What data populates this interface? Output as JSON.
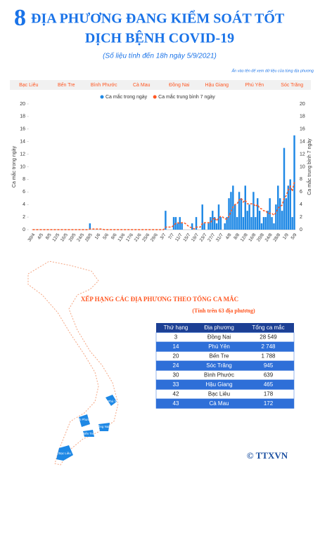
{
  "header": {
    "number": "8",
    "line1": "ĐỊA PHƯƠNG ĐANG KIỂM SOÁT TỐT",
    "line2": "DỊCH BỆNH COVID-19",
    "subtitle": "(Số liệu tính đến 18h ngày 5/9/2021)",
    "hint": "Ấn vào tên để xem dữ liệu của từng địa phương"
  },
  "tabs": [
    "Bạc Liêu",
    "Bến Tre",
    "Bình Phước",
    "Cà Mau",
    "Đồng Nai",
    "Hậu Giang",
    "Phú Yên",
    "Sóc Trăng"
  ],
  "chart_data": {
    "type": "bar",
    "y_label": "Ca mắc trong ngày",
    "y2_label": "Ca mắc trung bình 7 ngày",
    "categories": [
      "30/4",
      null,
      null,
      null,
      "4/5",
      null,
      null,
      null,
      "8/5",
      null,
      null,
      null,
      "12/5",
      null,
      null,
      null,
      "16/5",
      null,
      null,
      null,
      "20/5",
      null,
      null,
      null,
      "24/5",
      null,
      null,
      null,
      "28/5",
      null,
      null,
      null,
      "1/6",
      null,
      null,
      null,
      "5/6",
      null,
      null,
      null,
      "9/6",
      null,
      null,
      null,
      "13/6",
      null,
      null,
      null,
      "17/6",
      null,
      null,
      null,
      "21/6",
      null,
      null,
      null,
      "25/6",
      null,
      null,
      null,
      "29/6",
      null,
      null,
      null,
      "3/7",
      null,
      null,
      null,
      "7/7",
      null,
      null,
      null,
      "11/7",
      null,
      null,
      null,
      "15/7",
      null,
      null,
      null,
      "19/7",
      null,
      null,
      null,
      "23/7",
      null,
      null,
      null,
      "27/7",
      null,
      null,
      null,
      "31/7",
      null,
      null,
      null,
      "4/8",
      null,
      null,
      null,
      "8/8",
      null,
      null,
      null,
      "12/8",
      null,
      null,
      null,
      "16/8",
      null,
      null,
      null,
      "20/8",
      null,
      null,
      null,
      "24/8",
      null,
      null,
      null,
      "28/8",
      null,
      null,
      null,
      "1/9",
      null,
      null,
      null,
      "5/9"
    ],
    "series": [
      {
        "name": "Ca mắc trong ngày",
        "color": "#1e88e5",
        "values": [
          0,
          0,
          0,
          0,
          0,
          0,
          0,
          0,
          0,
          0,
          0,
          0,
          0,
          0,
          0,
          0,
          0,
          0,
          0,
          0,
          0,
          0,
          0,
          0,
          0,
          0,
          0,
          0,
          1,
          0,
          0,
          0,
          0,
          0,
          0,
          0,
          0,
          0,
          0,
          0,
          0,
          0,
          0,
          0,
          0,
          0,
          0,
          0,
          0,
          0,
          0,
          0,
          0,
          0,
          0,
          0,
          0,
          0,
          0,
          0,
          0,
          0,
          0,
          0,
          0,
          3,
          0,
          0,
          0,
          2,
          2,
          1,
          2,
          1,
          0,
          0,
          0,
          0,
          1,
          0,
          2,
          0,
          0,
          4,
          1,
          0,
          1,
          2,
          3,
          2,
          1,
          4,
          2,
          0,
          1,
          2,
          5,
          6,
          7,
          4,
          2,
          6,
          5,
          2,
          7,
          3,
          4,
          2,
          6,
          2,
          5,
          3,
          1,
          2,
          2,
          3,
          5,
          2,
          1,
          4,
          7,
          5,
          3,
          13,
          5,
          7,
          8,
          2,
          15
        ]
      },
      {
        "name": "Ca mắc trung bình 7 ngày",
        "color": "#ff5722",
        "type": "line",
        "axis": "y2",
        "values": [
          0,
          0,
          0,
          0,
          0,
          0,
          0,
          0,
          0,
          0,
          0,
          0,
          0,
          0,
          0,
          0,
          0,
          0,
          0,
          0,
          0,
          0,
          0,
          0,
          0,
          0,
          0,
          0,
          0.1,
          0.1,
          0.1,
          0.1,
          0.1,
          0.1,
          0.1,
          0,
          0,
          0,
          0,
          0,
          0,
          0,
          0,
          0,
          0,
          0,
          0,
          0,
          0,
          0,
          0,
          0,
          0,
          0,
          0,
          0,
          0,
          0,
          0,
          0,
          0,
          0,
          0,
          0,
          0,
          0.4,
          0.4,
          0.4,
          0.4,
          0.7,
          1.0,
          1.1,
          1.0,
          1.1,
          1.1,
          0.9,
          0.6,
          0.4,
          0.3,
          0.1,
          0.4,
          0.4,
          0.4,
          1,
          1.1,
          1.1,
          1.1,
          1.1,
          1.6,
          1.9,
          1.4,
          1.9,
          2.1,
          2.0,
          1.7,
          1.7,
          2.1,
          2.9,
          3.6,
          4.0,
          4.1,
          4.7,
          5.0,
          4.4,
          4.7,
          4.1,
          4.1,
          4.1,
          4.1,
          3.7,
          4.0,
          3.4,
          3.3,
          3.0,
          3.0,
          2.6,
          2.6,
          2.6,
          2.3,
          2.7,
          3.4,
          3.7,
          3.9,
          5.0,
          5.4,
          6.3,
          6.9,
          6.1,
          7.6
        ]
      }
    ],
    "ylim": [
      0,
      20
    ],
    "yticks": [
      0,
      2,
      4,
      6,
      8,
      10,
      12,
      14,
      16,
      18,
      20
    ],
    "y2lim": [
      0,
      20
    ],
    "y2ticks": [
      0,
      2,
      4,
      6,
      8,
      10,
      12,
      14,
      16,
      18,
      20
    ]
  },
  "map": {
    "labels": [
      "Phú Yên",
      "Bình Phước",
      "Đồng Nai",
      "Bến Tre",
      "Bạc Liêu"
    ]
  },
  "ranking": {
    "title": "XẾP HẠNG CÁC ĐỊA PHƯƠNG THEO TỔNG CA MẮC",
    "subtitle": "(Tính trên 63 địa phương)",
    "columns": [
      "Thứ hạng",
      "Địa phương",
      "Tổng ca mắc"
    ],
    "rows": [
      [
        3,
        "Đồng Nai",
        "28 549"
      ],
      [
        14,
        "Phú Yên",
        "2 748"
      ],
      [
        20,
        "Bến Tre",
        "1 788"
      ],
      [
        24,
        "Sóc Trăng",
        "945"
      ],
      [
        30,
        "Bình Phước",
        "639"
      ],
      [
        33,
        "Hậu Giang",
        "465"
      ],
      [
        42,
        "Bạc Liêu",
        "178"
      ],
      [
        43,
        "Cà Mau",
        "172"
      ]
    ]
  },
  "logo": "© TTXVN"
}
